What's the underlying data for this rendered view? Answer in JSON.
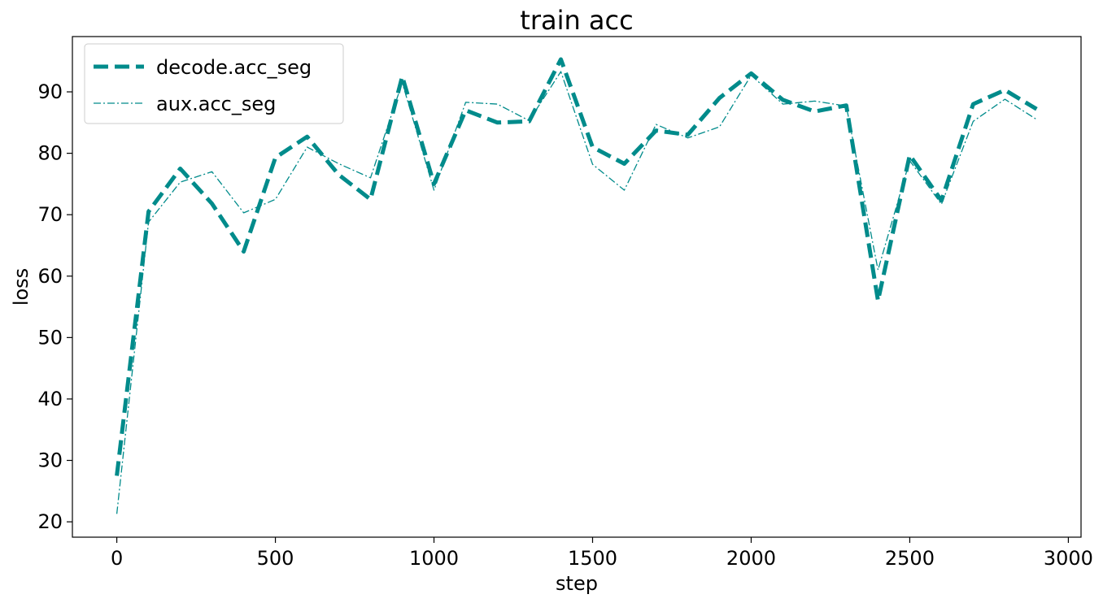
{
  "chart_data": {
    "type": "line",
    "title": "train acc",
    "xlabel": "step",
    "ylabel": "loss",
    "xlim": [
      -140,
      3040
    ],
    "ylim": [
      17.5,
      99
    ],
    "xticks": [
      0,
      500,
      1000,
      1500,
      2000,
      2500,
      3000
    ],
    "yticks": [
      20,
      30,
      40,
      50,
      60,
      70,
      80,
      90
    ],
    "legend_position": "top-left",
    "x": [
      0,
      100,
      200,
      300,
      400,
      500,
      600,
      700,
      800,
      900,
      1000,
      1100,
      1200,
      1300,
      1400,
      1500,
      1600,
      1700,
      1800,
      1900,
      2000,
      2100,
      2200,
      2300,
      2400,
      2500,
      2600,
      2700,
      2800,
      2900
    ],
    "series": [
      {
        "name": "decode.acc_seg",
        "color": "#008b8b",
        "style": "dashed-thick",
        "values": [
          27.5,
          70.5,
          77.5,
          71.8,
          64.0,
          79.3,
          82.7,
          76.5,
          72.5,
          92.5,
          75.0,
          87.0,
          85.0,
          85.2,
          95.3,
          81.0,
          78.3,
          83.7,
          83.0,
          89.0,
          93.0,
          88.7,
          86.8,
          87.8,
          56.0,
          79.7,
          72.3,
          88.0,
          90.3,
          87.2
        ]
      },
      {
        "name": "aux.acc_seg",
        "color": "#008b8b",
        "style": "dashdot-thin",
        "values": [
          21.3,
          68.8,
          75.3,
          77.0,
          70.3,
          72.5,
          81.0,
          78.3,
          76.0,
          91.5,
          74.0,
          88.3,
          88.0,
          85.3,
          93.3,
          78.2,
          74.0,
          84.7,
          82.5,
          84.3,
          92.7,
          88.0,
          88.5,
          87.7,
          61.0,
          78.8,
          71.7,
          85.2,
          88.8,
          85.5
        ]
      }
    ]
  }
}
